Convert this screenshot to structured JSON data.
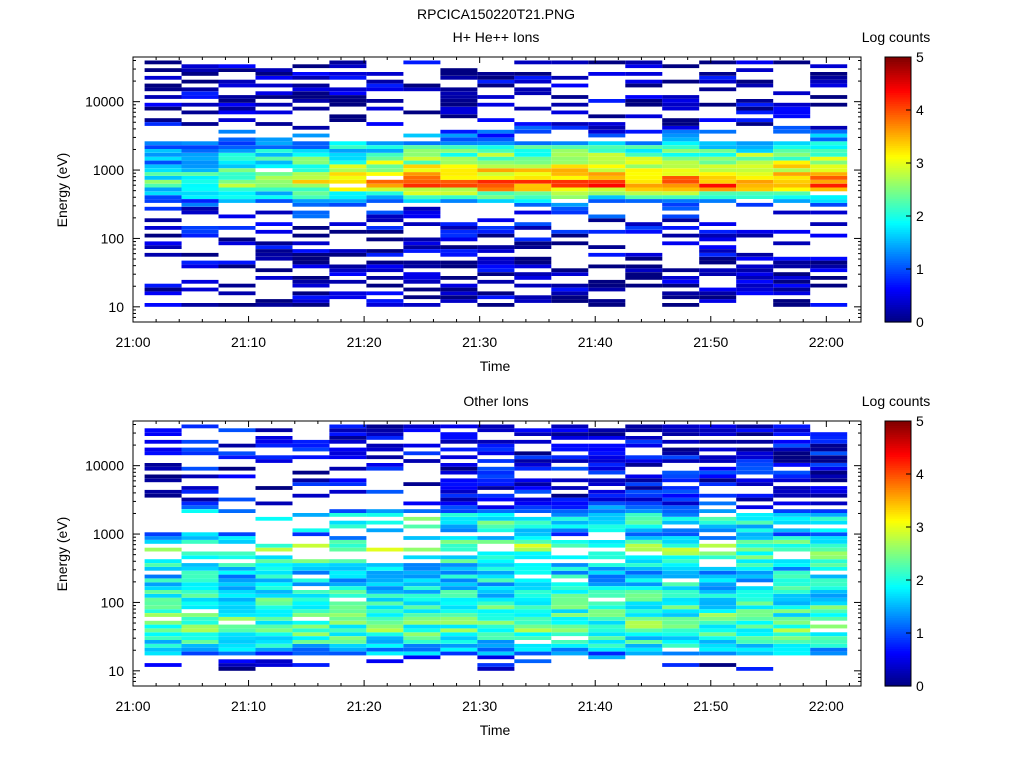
{
  "figure_title": "RPCICA150220T21.PNG",
  "chart_data": [
    {
      "type": "heatmap",
      "title": "H+ He++ Ions",
      "xlabel": "Time",
      "ylabel": "Energy (eV)",
      "colorbar_label": "Log counts",
      "x_ticks": [
        "21:00",
        "21:10",
        "21:20",
        "21:30",
        "21:40",
        "21:50",
        "22:00"
      ],
      "y_ticks": [
        "10",
        "100",
        "1000",
        "10000"
      ],
      "colorbar_ticks": [
        "0",
        "1",
        "2",
        "3",
        "4",
        "5"
      ],
      "x_range_minutes": [
        0,
        63
      ],
      "y_range_ev": [
        6,
        45000
      ],
      "z_range": [
        0,
        5
      ],
      "log_y": true,
      "colormap": "jet",
      "time_bins": [
        {
          "start": 1,
          "end": 4.2
        },
        {
          "start": 4.2,
          "end": 7.4
        },
        {
          "start": 7.4,
          "end": 10.6
        },
        {
          "start": 10.6,
          "end": 13.8
        },
        {
          "start": 13.8,
          "end": 17
        },
        {
          "start": 17,
          "end": 20.2
        },
        {
          "start": 20.2,
          "end": 23.4
        },
        {
          "start": 23.4,
          "end": 26.6
        },
        {
          "start": 26.6,
          "end": 29.8
        },
        {
          "start": 29.8,
          "end": 33
        },
        {
          "start": 33,
          "end": 36.2
        },
        {
          "start": 36.2,
          "end": 39.4
        },
        {
          "start": 39.4,
          "end": 42.6
        },
        {
          "start": 42.6,
          "end": 45.8
        },
        {
          "start": 45.8,
          "end": 49
        },
        {
          "start": 49,
          "end": 52.2
        },
        {
          "start": 52.2,
          "end": 55.4
        },
        {
          "start": 55.4,
          "end": 58.6
        },
        {
          "start": 58.6,
          "end": 61.8
        }
      ],
      "intensity_profile": [
        {
          "energy_ev": 30,
          "level": 0.2
        },
        {
          "energy_ev": 100,
          "level": 0.3
        },
        {
          "energy_ev": 300,
          "level": 0.8
        },
        {
          "energy_ev": 600,
          "level": 3.9
        },
        {
          "energy_ev": 1500,
          "level": 2.6
        },
        {
          "energy_ev": 5000,
          "level": 0.3
        },
        {
          "energy_ev": 30000,
          "level": 0.2
        }
      ]
    },
    {
      "type": "heatmap",
      "title": "Other Ions",
      "xlabel": "Time",
      "ylabel": "Energy (eV)",
      "colorbar_label": "Log counts",
      "x_ticks": [
        "21:00",
        "21:10",
        "21:20",
        "21:30",
        "21:40",
        "21:50",
        "22:00"
      ],
      "y_ticks": [
        "10",
        "100",
        "1000",
        "10000"
      ],
      "colorbar_ticks": [
        "0",
        "1",
        "2",
        "3",
        "4",
        "5"
      ],
      "x_range_minutes": [
        0,
        63
      ],
      "y_range_ev": [
        6,
        45000
      ],
      "z_range": [
        0,
        5
      ],
      "log_y": true,
      "colormap": "jet",
      "time_bins": [
        {
          "start": 1,
          "end": 4.2
        },
        {
          "start": 4.2,
          "end": 7.4
        },
        {
          "start": 7.4,
          "end": 10.6
        },
        {
          "start": 10.6,
          "end": 13.8
        },
        {
          "start": 13.8,
          "end": 17
        },
        {
          "start": 17,
          "end": 20.2
        },
        {
          "start": 20.2,
          "end": 23.4
        },
        {
          "start": 23.4,
          "end": 26.6
        },
        {
          "start": 26.6,
          "end": 29.8
        },
        {
          "start": 29.8,
          "end": 33
        },
        {
          "start": 33,
          "end": 36.2
        },
        {
          "start": 36.2,
          "end": 39.4
        },
        {
          "start": 39.4,
          "end": 42.6
        },
        {
          "start": 42.6,
          "end": 45.8
        },
        {
          "start": 45.8,
          "end": 49
        },
        {
          "start": 49,
          "end": 52.2
        },
        {
          "start": 52.2,
          "end": 55.4
        },
        {
          "start": 55.4,
          "end": 58.6
        },
        {
          "start": 58.6,
          "end": 61.8
        }
      ],
      "intensity_profile": [
        {
          "energy_ev": 12,
          "level": 0.3
        },
        {
          "energy_ev": 20,
          "level": 1.6
        },
        {
          "energy_ev": 40,
          "level": 2.3
        },
        {
          "energy_ev": 100,
          "level": 2.0
        },
        {
          "energy_ev": 300,
          "level": 1.6
        },
        {
          "energy_ev": 650,
          "level": 2.6
        },
        {
          "energy_ev": 1000,
          "level": 1.2
        },
        {
          "energy_ev": 1600,
          "level": 2.2
        },
        {
          "energy_ev": 3000,
          "level": 0.5
        }
      ]
    }
  ]
}
